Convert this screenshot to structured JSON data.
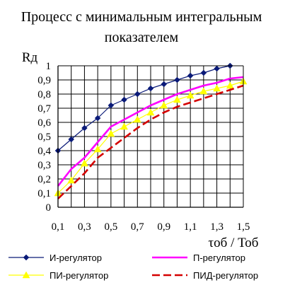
{
  "chart_data": {
    "type": "line",
    "title_line1": "Процесс с минимальным интегральным",
    "title_line2": "показателем",
    "ylabel": "Rд",
    "xlabel": "τоб / Тоб",
    "xlim": [
      0.1,
      1.5
    ],
    "ylim": [
      0,
      1
    ],
    "x_tick_labels": [
      "0,1",
      "0,3",
      "0,5",
      "0,7",
      "0,9",
      "1,1",
      "1,3",
      "1,5"
    ],
    "x_tick_values": [
      0.1,
      0.3,
      0.5,
      0.7,
      0.9,
      1.1,
      1.3,
      1.5
    ],
    "y_tick_labels": [
      "0",
      "0,1",
      "0,2",
      "0,3",
      "0,4",
      "0,5",
      "0,6",
      "0,7",
      "0,8",
      "0,9",
      "1"
    ],
    "y_tick_values": [
      0,
      0.1,
      0.2,
      0.3,
      0.4,
      0.5,
      0.6,
      0.7,
      0.8,
      0.9,
      1.0
    ],
    "grid": true,
    "legend_position": "bottom",
    "x": [
      0.1,
      0.2,
      0.3,
      0.4,
      0.5,
      0.6,
      0.7,
      0.8,
      0.9,
      1.0,
      1.1,
      1.2,
      1.3,
      1.4,
      1.5
    ],
    "series": [
      {
        "name": "И-регулятор",
        "color": "#0a1a78",
        "marker": "diamond",
        "dash": "solid",
        "x": [
          0.1,
          0.2,
          0.3,
          0.4,
          0.5,
          0.6,
          0.7,
          0.8,
          0.9,
          1.0,
          1.1,
          1.2,
          1.3,
          1.4
        ],
        "values": [
          0.4,
          0.48,
          0.56,
          0.63,
          0.72,
          0.76,
          0.8,
          0.84,
          0.87,
          0.9,
          0.93,
          0.95,
          0.98,
          1.0
        ]
      },
      {
        "name": "П-регулятор",
        "color": "#ff00ff",
        "marker": "none",
        "dash": "solid",
        "x": [
          0.1,
          0.2,
          0.3,
          0.4,
          0.5,
          0.6,
          0.7,
          0.8,
          0.9,
          1.0,
          1.1,
          1.2,
          1.3,
          1.4,
          1.5
        ],
        "values": [
          0.15,
          0.27,
          0.35,
          0.46,
          0.57,
          0.62,
          0.67,
          0.72,
          0.76,
          0.8,
          0.83,
          0.86,
          0.88,
          0.91,
          0.92
        ]
      },
      {
        "name": "ПИ-регулятор",
        "color": "#ffff00",
        "marker": "triangle",
        "dash": "solid",
        "x": [
          0.1,
          0.2,
          0.3,
          0.4,
          0.5,
          0.6,
          0.7,
          0.8,
          0.9,
          1.0,
          1.1,
          1.2,
          1.3,
          1.4,
          1.5
        ],
        "values": [
          0.1,
          0.19,
          0.31,
          0.41,
          0.52,
          0.57,
          0.62,
          0.67,
          0.72,
          0.76,
          0.79,
          0.82,
          0.84,
          0.86,
          0.89
        ]
      },
      {
        "name": "ПИД-регулятор",
        "color": "#d40000",
        "marker": "none",
        "dash": "dashed",
        "x": [
          0.1,
          0.2,
          0.3,
          0.4,
          0.5,
          0.6,
          0.7,
          0.8,
          0.9,
          1.0,
          1.1,
          1.2,
          1.3,
          1.4,
          1.5
        ],
        "values": [
          0.06,
          0.15,
          0.24,
          0.35,
          0.42,
          0.49,
          0.56,
          0.62,
          0.67,
          0.71,
          0.74,
          0.77,
          0.8,
          0.83,
          0.86
        ]
      }
    ]
  }
}
